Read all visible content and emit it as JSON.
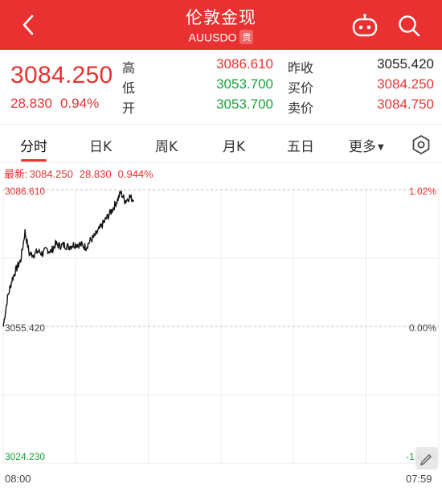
{
  "header": {
    "title": "伦敦金现",
    "symbol": "AUUSDO",
    "badge": "贵",
    "icons": {
      "back": "back-chevron-icon",
      "robot": "robot-assistant-icon",
      "search": "search-icon"
    }
  },
  "quote": {
    "price": "3084.250",
    "change": "28.830",
    "change_pct": "0.94%",
    "fields": [
      {
        "label": "高",
        "value": "3086.610",
        "color": "red"
      },
      {
        "label": "低",
        "value": "3053.700",
        "color": "green"
      },
      {
        "label": "开",
        "value": "3053.700",
        "color": "green"
      },
      {
        "label": "昨收",
        "value": "3055.420",
        "color": "dark"
      },
      {
        "label": "买价",
        "value": "3084.250",
        "color": "red"
      },
      {
        "label": "卖价",
        "value": "3084.750",
        "color": "red"
      }
    ]
  },
  "tabs": [
    {
      "label": "分时",
      "active": true
    },
    {
      "label": "日K",
      "active": false
    },
    {
      "label": "周K",
      "active": false
    },
    {
      "label": "月K",
      "active": false
    },
    {
      "label": "五日",
      "active": false
    },
    {
      "label": "更多",
      "active": false
    }
  ],
  "latest": {
    "label": "最新:",
    "price": "3084.250",
    "change": "28.830",
    "pct": "0.944%"
  },
  "colors": {
    "up": "#e83232",
    "down": "#1a9f3a",
    "header": "#ea3131"
  },
  "chart_data": {
    "type": "line",
    "title": "",
    "xlabel": "",
    "ylabel": "",
    "ylim": [
      3024.23,
      3086.61
    ],
    "y_ticks_left": [
      "3086.610",
      "3055.420",
      "3024.230"
    ],
    "y_ticks_right": [
      "1.02%",
      "0.00%",
      "-1.02%"
    ],
    "x_ticks": [
      "08:00",
      "07:59"
    ],
    "reference": 3055.42,
    "grid": true,
    "series": [
      {
        "x": [
          0,
          0.01,
          0.02,
          0.03,
          0.04,
          0.05,
          0.06,
          0.07,
          0.08,
          0.09,
          0.1,
          0.11,
          0.12,
          0.13,
          0.14,
          0.15,
          0.16,
          0.17,
          0.18,
          0.19,
          0.2,
          0.21,
          0.22,
          0.23,
          0.24,
          0.25,
          0.26,
          0.27,
          0.28,
          0.29,
          0.3
        ],
        "values": [
          3055.4,
          3062.0,
          3066.0,
          3068.5,
          3070.5,
          3077.0,
          3072.0,
          3071.8,
          3072.6,
          3072.0,
          3073.0,
          3072.5,
          3074.2,
          3073.8,
          3074.0,
          3073.6,
          3074.0,
          3074.2,
          3074.0,
          3073.5,
          3075.0,
          3076.0,
          3077.5,
          3079.0,
          3080.5,
          3082.0,
          3083.8,
          3086.0,
          3084.0,
          3085.0,
          3084.25
        ]
      }
    ]
  }
}
